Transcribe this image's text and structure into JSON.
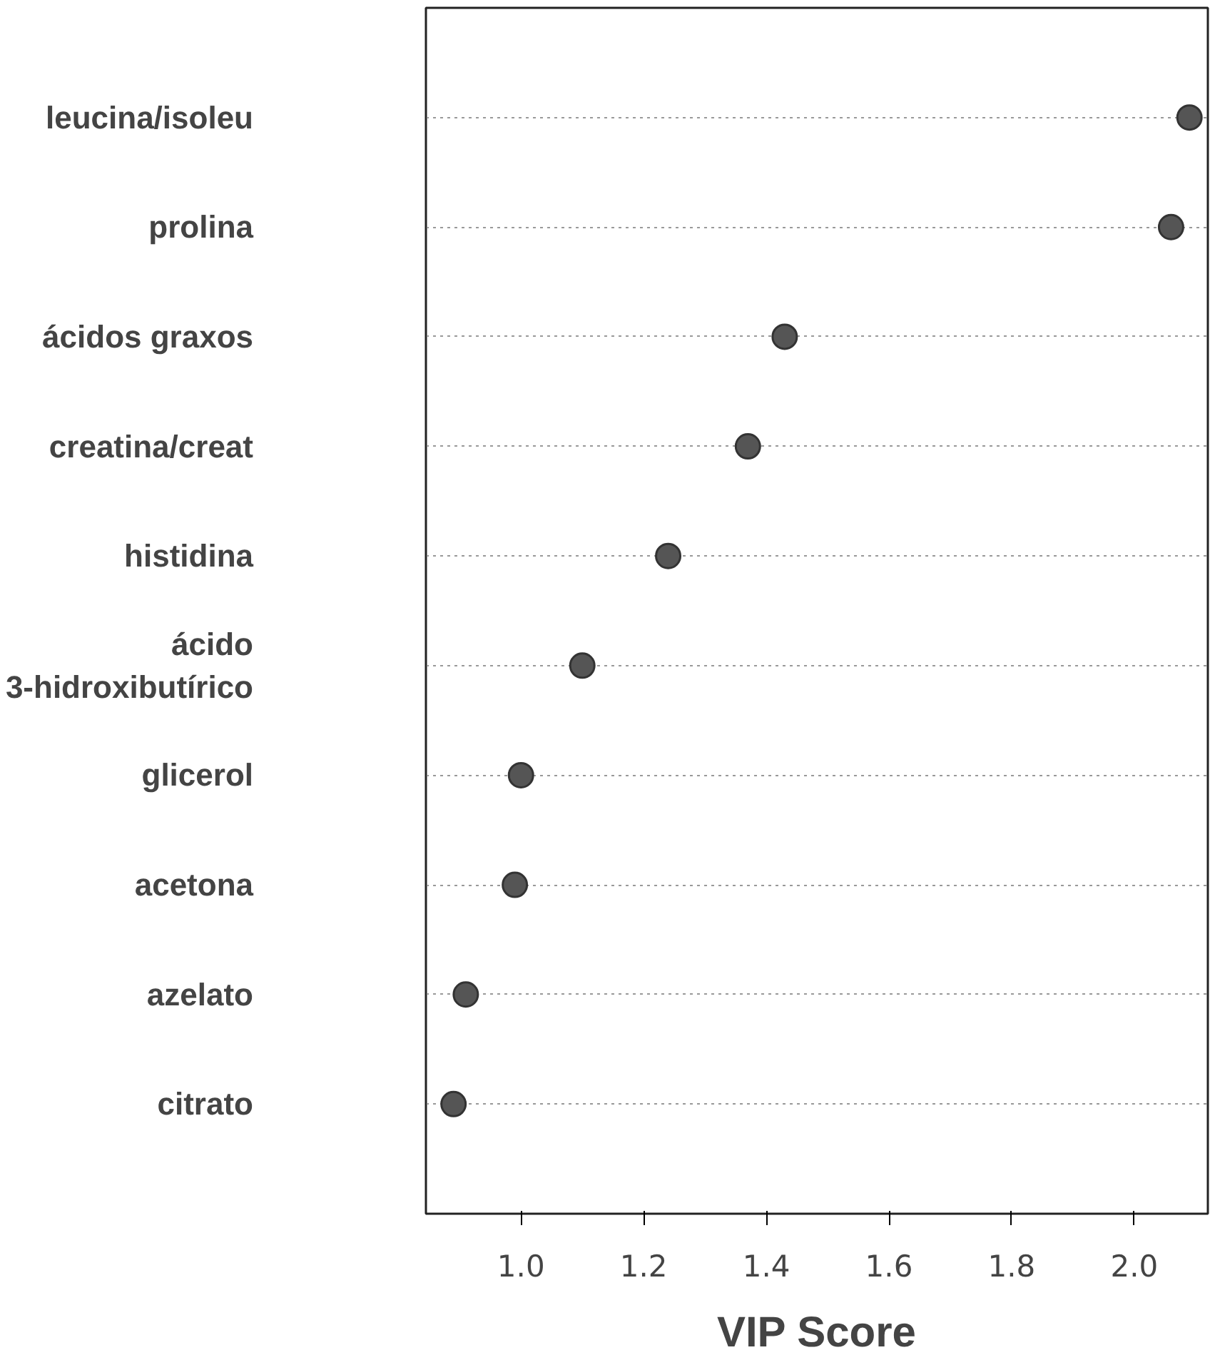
{
  "chart_data": {
    "type": "scatter",
    "orientation": "horizontal",
    "categories": [
      "leucina/isoleu",
      "prolina",
      "ácidos graxos",
      "creatina/creat",
      "histidina",
      "ácido 3-hidroxibutírico",
      "glicerol",
      "acetona",
      "azelato",
      "citrato"
    ],
    "values": [
      2.09,
      2.06,
      1.43,
      1.37,
      1.24,
      1.1,
      1.0,
      0.99,
      0.91,
      0.89
    ],
    "color": "#555555",
    "xlabel": "VIP Score",
    "xlim": [
      0.845,
      2.12
    ],
    "xticks": [
      {
        "value": 1,
        "label": "1.0"
      },
      1.2,
      1.4,
      1.6,
      1.8,
      {
        "value": 2,
        "label": "2.0"
      }
    ],
    "grid": "y",
    "marker": "circle"
  }
}
